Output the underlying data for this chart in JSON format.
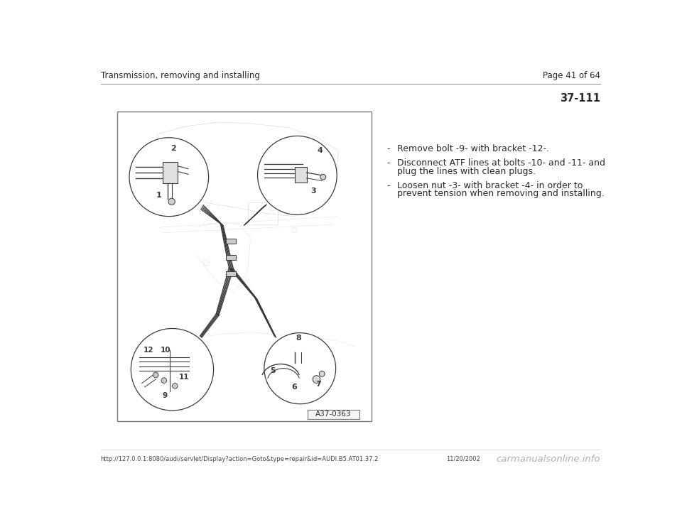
{
  "page_title_left": "Transmission, removing and installing",
  "page_title_right": "Page 41 of 64",
  "section_number": "37-111",
  "bullet_points": [
    {
      "dash": "-",
      "line1": "Remove bolt -9- with bracket -12-."
    },
    {
      "dash": "-",
      "line1": "Disconnect ATF lines at bolts -10- and -11- and",
      "line2": "plug the lines with clean plugs."
    },
    {
      "dash": "-",
      "line1": "Loosen nut -3- with bracket -4- in order to",
      "line2": "prevent tension when removing and installing."
    }
  ],
  "figure_label": "A37-0363",
  "footer_url": "http://127.0.0.1:8080/audi/servlet/Display?action=Goto&type=repair&id=AUDI.B5.AT01.37.2",
  "footer_date": "11/20/2002",
  "footer_watermark": "carmanualsonline.info",
  "bg_color": "#ffffff",
  "text_color": "#2a2a2a",
  "line_color": "#555555",
  "diagram_bg": "#ffffff",
  "box_border": "#888888"
}
